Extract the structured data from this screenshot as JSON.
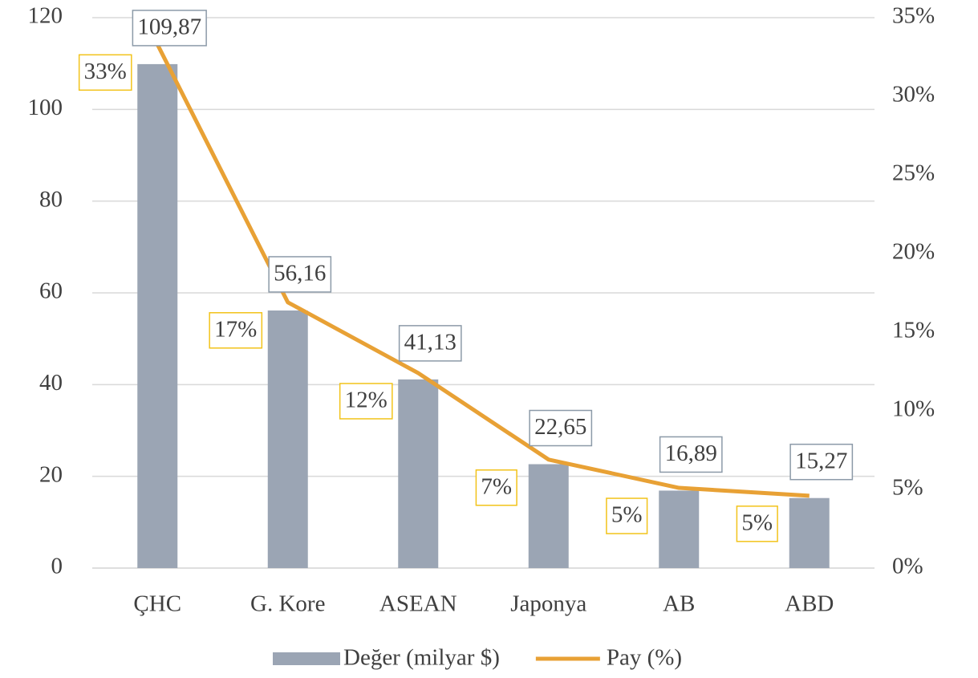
{
  "chart_data": {
    "type": "combo",
    "categories": [
      "ÇHC",
      "G. Kore",
      "ASEAN",
      "Japonya",
      "AB",
      "ABD"
    ],
    "series": [
      {
        "name": "Değer (milyar $)",
        "type": "bar",
        "color": "#9ba5b4",
        "values": [
          109.87,
          56.16,
          41.13,
          22.65,
          16.89,
          15.27
        ],
        "value_labels": [
          "109,87",
          "56,16",
          "41,13",
          "22,65",
          "16,89",
          "15,27"
        ]
      },
      {
        "name": "Pay (%)",
        "type": "line",
        "axis": "y2",
        "color": "#e8a135",
        "values": [
          33.3,
          16.9,
          12.4,
          6.9,
          5.1,
          4.6
        ],
        "value_labels": [
          "33%",
          "17%",
          "12%",
          "7%",
          "5%",
          "5%"
        ]
      }
    ],
    "ylim": [
      0,
      120
    ],
    "yticks": [
      0,
      20,
      40,
      60,
      80,
      100,
      120
    ],
    "y2lim": [
      0,
      35
    ],
    "y2ticks": [
      {
        "value": 0,
        "label": "0%"
      },
      {
        "value": 5,
        "label": "5%"
      },
      {
        "value": 10,
        "label": "10%"
      },
      {
        "value": 15,
        "label": "15%"
      },
      {
        "value": 20,
        "label": "20%"
      },
      {
        "value": 25,
        "label": "25%"
      },
      {
        "value": 30,
        "label": "30%"
      },
      {
        "value": 35,
        "label": "35%"
      }
    ],
    "grid": true,
    "legend": "bottom"
  }
}
